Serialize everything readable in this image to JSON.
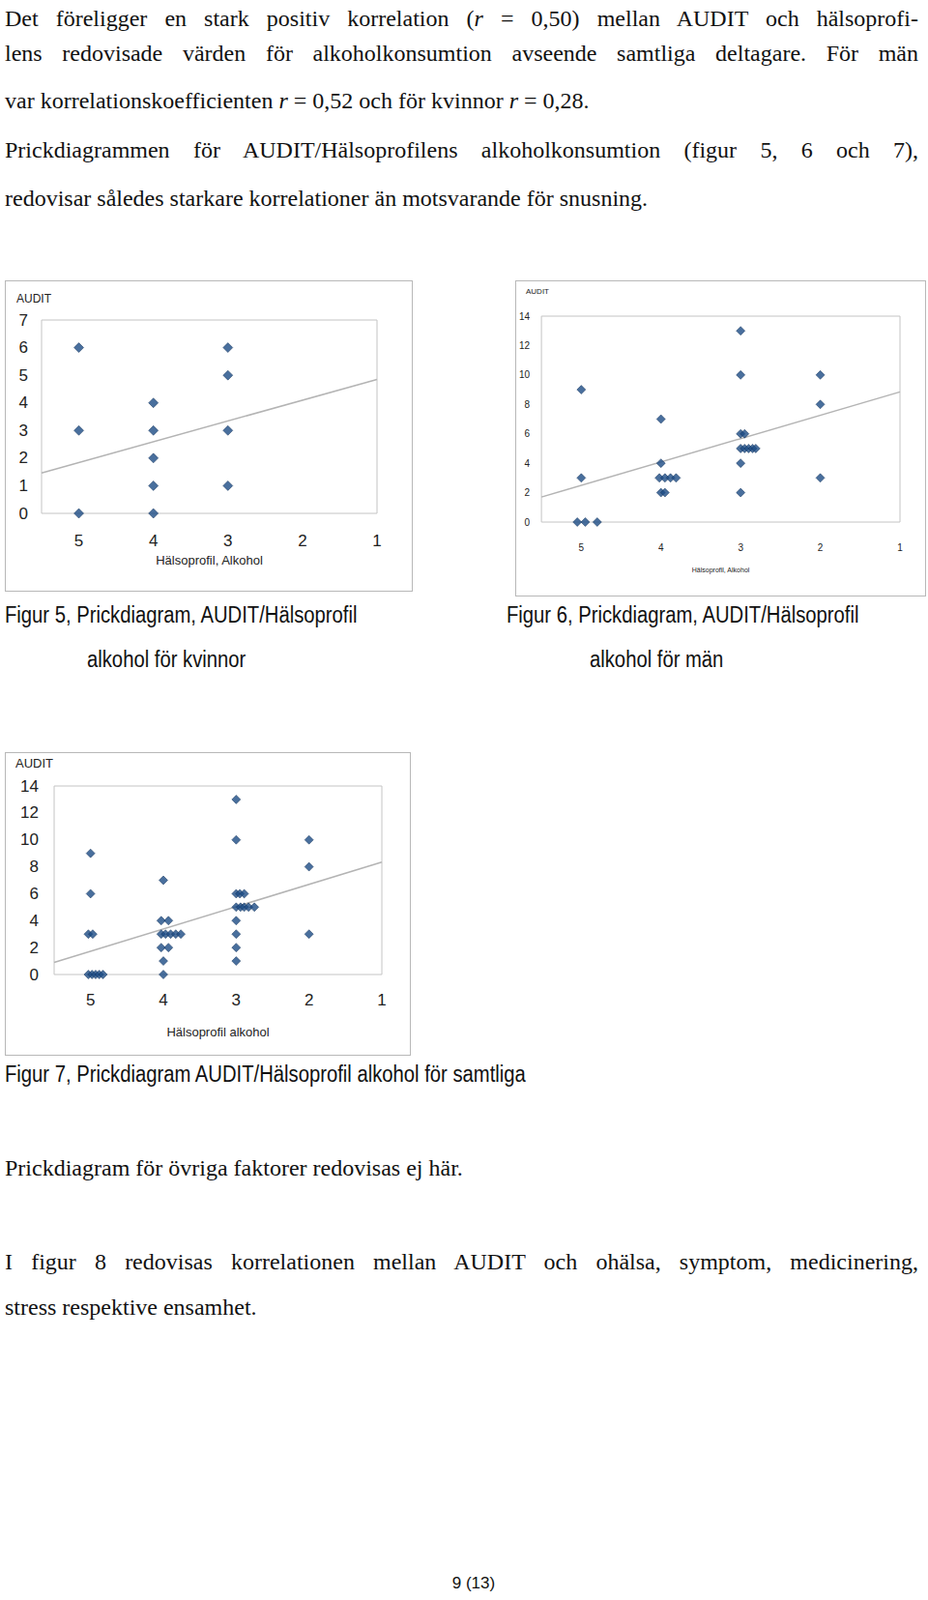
{
  "text_above": [
    [
      "Det föreligger en stark positiv korrelation (r = 0,50) mellan AUDIT och hälsoprofi-",
      "lens redovisade värden för alkoholkonsumtion avseende samtliga deltagare. För män",
      "var korrelationskoefficienten r = 0,52 och för kvinnor r = 0,28."
    ],
    [
      "Prickdiagrammen för AUDIT/Hälsoprofilens alkoholkonsumtion (figur 5, 6 och 7),",
      "redovisar således starkare korrelationer än motsvarande för snusning."
    ]
  ],
  "chart_data": [
    {
      "type": "scatter",
      "caption": [
        "Figur 5, Prickdiagram, AUDIT/Hälsoprofil",
        "alkohol för kvinnor"
      ],
      "x_label": "Hälsoprofil, Alkohol",
      "y_label": "AUDIT",
      "xlim": [
        5.5,
        1
      ],
      "xticks": [
        5,
        4,
        3,
        2,
        1
      ],
      "ylim": [
        0,
        7
      ],
      "yticks": [
        0,
        1,
        2,
        3,
        4,
        5,
        6,
        7
      ],
      "grid": false,
      "series": [
        {
          "type": "scatter",
          "color": "#1b4b84",
          "marker": "diamond",
          "x": [
            5,
            5,
            5,
            4,
            4,
            4,
            4,
            4,
            3,
            3,
            3,
            3
          ],
          "values": [
            6,
            3,
            0,
            4,
            3,
            2,
            1,
            0,
            6,
            5,
            3,
            1
          ]
        },
        {
          "type": "line",
          "color": "#b4b4b4",
          "marker": "none",
          "line_style": "solid",
          "x": [
            5.5,
            1
          ],
          "values": [
            1.46,
            4.85
          ]
        }
      ]
    },
    {
      "type": "scatter",
      "caption": [
        "Figur 6, Prickdiagram, AUDIT/Hälsoprofil",
        "alkohol för män"
      ],
      "x_label": "Hälsoprofil, Alkohol",
      "y_label": "AUDIT",
      "xlim": [
        5.5,
        1
      ],
      "xticks": [
        5,
        4,
        3,
        2,
        1
      ],
      "ylim": [
        0,
        14
      ],
      "yticks": [
        0,
        2,
        4,
        6,
        8,
        10,
        12,
        14
      ],
      "grid": false,
      "series": [
        {
          "type": "scatter",
          "color": "#1b4b84",
          "marker": "diamond",
          "x": [
            5,
            5,
            5.05,
            4.95,
            4.8,
            4,
            4,
            4.02,
            3.95,
            3.88,
            3.81,
            4,
            3.95,
            3,
            3,
            3,
            2.95,
            3,
            2.95,
            2.9,
            2.85,
            2.81,
            3,
            3,
            2,
            2,
            2
          ],
          "values": [
            9,
            3,
            0,
            0,
            0,
            7,
            4,
            3,
            3,
            3,
            3,
            2,
            2,
            13,
            10,
            6,
            6,
            5,
            5,
            5,
            5,
            5,
            4,
            2,
            10,
            8,
            3
          ]
        },
        {
          "type": "line",
          "color": "#b4b4b4",
          "marker": "none",
          "line_style": "solid",
          "x": [
            5.5,
            1
          ],
          "values": [
            1.7,
            8.85
          ]
        }
      ]
    },
    {
      "type": "scatter",
      "caption": [
        "Figur 7, Prickdiagram AUDIT/Hälsoprofil alkohol för samtliga"
      ],
      "x_label": "Hälsoprofil alkohol",
      "y_label": "AUDIT",
      "xlim": [
        5.5,
        1
      ],
      "xticks": [
        5,
        4,
        3,
        2,
        1
      ],
      "ylim": [
        0,
        14
      ],
      "yticks": [
        0,
        2,
        4,
        6,
        8,
        10,
        12,
        14
      ],
      "grid": false,
      "series": [
        {
          "type": "scatter",
          "color": "#1b4b84",
          "marker": "diamond",
          "x": [
            5,
            5,
            5.03,
            4.97,
            5.03,
            4.98,
            4.93,
            4.88,
            4.83,
            4,
            4.03,
            3.93,
            4.03,
            3.97,
            3.9,
            3.83,
            3.76,
            4.03,
            3.93,
            4,
            4,
            3,
            3,
            3,
            2.95,
            2.89,
            3,
            2.94,
            2.89,
            2.83,
            2.75,
            3,
            3,
            3,
            3,
            2,
            2,
            2
          ],
          "values": [
            9,
            6,
            3,
            3,
            0,
            0,
            0,
            0,
            0,
            7,
            4,
            4,
            3,
            3,
            3,
            3,
            3,
            2,
            2,
            1,
            0,
            13,
            10,
            6,
            6,
            6,
            5,
            5,
            5,
            5,
            5,
            4,
            3,
            2,
            1,
            10,
            8,
            3
          ]
        },
        {
          "type": "line",
          "color": "#b4b4b4",
          "marker": "none",
          "line_style": "solid",
          "x": [
            5.5,
            1
          ],
          "values": [
            0.9,
            8.35
          ]
        }
      ]
    }
  ],
  "text_below": [
    [
      "Prickdiagram för övriga faktorer redovisas ej här."
    ],
    [
      "I figur 8 redovisas korrelationen mellan AUDIT och ohälsa, symptom, medicinering,",
      "stress respektive ensamhet."
    ]
  ],
  "page_number": "9 (13)"
}
